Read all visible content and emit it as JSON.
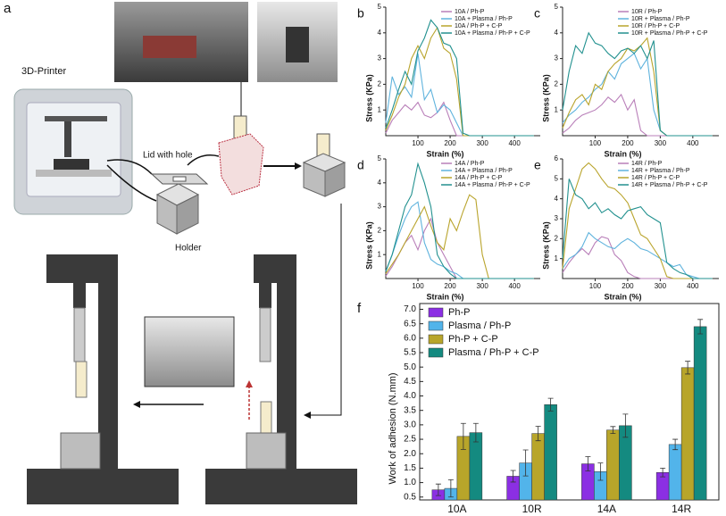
{
  "panel_a": {
    "panel_label": "a",
    "printer": "3D-Printer",
    "lid": "Lid with hole",
    "holder": "Holder"
  },
  "chart_data": [
    {
      "type": "line",
      "panel_label": "b",
      "xlabel": "Strain (%)",
      "ylabel": "Stress (KPa)",
      "x": [
        0,
        20,
        40,
        60,
        80,
        100,
        120,
        140,
        160,
        180,
        200,
        220,
        240,
        260,
        280,
        300,
        320,
        340,
        360,
        380,
        400,
        420,
        440,
        460
      ],
      "xlim": [
        0,
        480
      ],
      "ylim": [
        0,
        5
      ],
      "xticks": [
        100,
        200,
        300,
        400
      ],
      "yticks": [
        1,
        2,
        3,
        4,
        5
      ],
      "series": [
        {
          "name": "10A / Ph-P",
          "color": "#b97fb9",
          "values": [
            0.1,
            0.6,
            0.9,
            1.2,
            1.0,
            1.3,
            0.8,
            0.7,
            0.9,
            1.3,
            0.6,
            0,
            0,
            0,
            0,
            0,
            0,
            0,
            0,
            0,
            0,
            0,
            0,
            0
          ]
        },
        {
          "name": "10A + Plasma / Ph-P",
          "color": "#5fb3dd",
          "values": [
            0.5,
            2.3,
            1.6,
            1.9,
            1.5,
            3.2,
            1.4,
            1.8,
            0.9,
            1.2,
            1.0,
            0.5,
            0,
            0,
            0,
            0,
            0,
            0,
            0,
            0,
            0,
            0,
            0,
            0
          ]
        },
        {
          "name": "10A / Ph-P + C-P",
          "color": "#b9a42c",
          "values": [
            0.2,
            0.8,
            1.5,
            2.0,
            3.0,
            3.5,
            3.0,
            3.8,
            4.2,
            3.4,
            3.2,
            2.2,
            0,
            0,
            0,
            0,
            0,
            0,
            0,
            0,
            0,
            0,
            0,
            0
          ]
        },
        {
          "name": "10A + Plasma / Ph-P + C-P",
          "color": "#22918f",
          "values": [
            0.3,
            1.0,
            1.8,
            2.5,
            2.0,
            3.3,
            3.8,
            4.5,
            4.2,
            3.6,
            3.5,
            3.0,
            0.1,
            0,
            0,
            0,
            0,
            0,
            0,
            0,
            0,
            0,
            0,
            0
          ]
        }
      ]
    },
    {
      "type": "line",
      "panel_label": "c",
      "xlabel": "Strain (%)",
      "ylabel": "Stress (KPa)",
      "x": [
        0,
        20,
        40,
        60,
        80,
        100,
        120,
        140,
        160,
        180,
        200,
        220,
        240,
        260,
        280,
        300,
        320,
        340,
        360,
        380,
        400,
        420,
        440,
        460
      ],
      "xlim": [
        0,
        480
      ],
      "ylim": [
        0,
        5
      ],
      "xticks": [
        100,
        200,
        300,
        400
      ],
      "yticks": [
        1,
        2,
        3,
        4,
        5
      ],
      "series": [
        {
          "name": "10R / Ph-P",
          "color": "#b97fb9",
          "values": [
            0.1,
            0.3,
            0.6,
            0.8,
            0.9,
            1.0,
            1.2,
            1.5,
            1.3,
            1.6,
            1.0,
            1.4,
            0.2,
            0,
            0,
            0,
            0,
            0,
            0,
            0,
            0,
            0,
            0,
            0
          ]
        },
        {
          "name": "10R + Plasma / Ph-P",
          "color": "#5fb3dd",
          "values": [
            0.5,
            0.8,
            1.0,
            1.3,
            1.5,
            1.8,
            2.0,
            2.5,
            2.2,
            2.8,
            3.0,
            3.2,
            2.6,
            3.0,
            1.0,
            0.2,
            0,
            0,
            0,
            0,
            0,
            0,
            0,
            0
          ]
        },
        {
          "name": "10R / Ph-P + C-P",
          "color": "#b9a42c",
          "values": [
            0.3,
            0.9,
            1.4,
            1.6,
            1.2,
            2.0,
            1.8,
            2.5,
            2.8,
            3.0,
            3.4,
            3.3,
            3.5,
            3.8,
            2.5,
            0.2,
            0,
            0,
            0,
            0,
            0,
            0,
            0,
            0
          ]
        },
        {
          "name": "10R + Plasma / Ph-P + C-P",
          "color": "#22918f",
          "values": [
            1.0,
            2.5,
            3.5,
            3.2,
            4.0,
            3.6,
            3.5,
            3.2,
            3.0,
            3.3,
            3.4,
            3.2,
            3.5,
            3.0,
            3.7,
            0.2,
            0,
            0,
            0,
            0,
            0,
            0,
            0,
            0
          ]
        }
      ]
    },
    {
      "type": "line",
      "panel_label": "d",
      "xlabel": "Strain (%)",
      "ylabel": "Stress (KPa)",
      "x": [
        0,
        20,
        40,
        60,
        80,
        100,
        120,
        140,
        160,
        180,
        200,
        220,
        240,
        260,
        280,
        300,
        320,
        340,
        360,
        380,
        400,
        420,
        440,
        460
      ],
      "xlim": [
        0,
        480
      ],
      "ylim": [
        0,
        5
      ],
      "xticks": [
        100,
        200,
        300,
        400
      ],
      "yticks": [
        1,
        2,
        3,
        4,
        5
      ],
      "series": [
        {
          "name": "14A / Ph-P",
          "color": "#b97fb9",
          "values": [
            0.1,
            0.5,
            1.0,
            1.5,
            1.8,
            1.2,
            2.0,
            2.5,
            1.5,
            1.0,
            0.5,
            0,
            0,
            0,
            0,
            0,
            0,
            0,
            0,
            0,
            0,
            0,
            0,
            0
          ]
        },
        {
          "name": "14A + Plasma / Ph-P",
          "color": "#5fb3dd",
          "values": [
            0.3,
            1.0,
            1.8,
            2.5,
            3.0,
            3.2,
            1.5,
            0.8,
            0.6,
            0.5,
            0.3,
            0.2,
            0,
            0,
            0,
            0,
            0,
            0,
            0,
            0,
            0,
            0,
            0,
            0
          ]
        },
        {
          "name": "14A / Ph-P + C-P",
          "color": "#b9a42c",
          "values": [
            0.2,
            0.6,
            1.0,
            1.5,
            2.0,
            2.5,
            3.0,
            2.2,
            1.5,
            1.2,
            2.5,
            2.0,
            2.8,
            3.5,
            3.3,
            1.0,
            0,
            0,
            0,
            0,
            0,
            0,
            0,
            0
          ]
        },
        {
          "name": "14A + Plasma / Ph-P + C-P",
          "color": "#22918f",
          "values": [
            0.3,
            1.0,
            2.0,
            3.0,
            3.5,
            4.8,
            4.0,
            3.0,
            1.0,
            0.5,
            0.2,
            0,
            0,
            0,
            0,
            0,
            0,
            0,
            0,
            0,
            0,
            0,
            0,
            0
          ]
        }
      ]
    },
    {
      "type": "line",
      "panel_label": "e",
      "xlabel": "Strain (%)",
      "ylabel": "Stress (KPa)",
      "x": [
        0,
        20,
        40,
        60,
        80,
        100,
        120,
        140,
        160,
        180,
        200,
        220,
        240,
        260,
        280,
        300,
        320,
        340,
        360,
        380,
        400,
        420,
        440,
        460
      ],
      "xlim": [
        0,
        480
      ],
      "ylim": [
        0,
        6
      ],
      "xticks": [
        100,
        200,
        300,
        400
      ],
      "yticks": [
        1,
        2,
        3,
        4,
        5,
        6
      ],
      "series": [
        {
          "name": "14R / Ph-P",
          "color": "#b97fb9",
          "values": [
            0.3,
            0.8,
            1.2,
            1.5,
            1.2,
            1.8,
            2.1,
            2.0,
            1.2,
            0.9,
            0.3,
            0.1,
            0,
            0,
            0,
            0,
            0,
            0,
            0,
            0,
            0,
            0,
            0,
            0
          ]
        },
        {
          "name": "14R + Plasma / Ph-P",
          "color": "#5fb3dd",
          "values": [
            0.5,
            1.0,
            1.2,
            1.6,
            2.3,
            2.0,
            1.8,
            1.6,
            1.5,
            1.8,
            2.0,
            1.8,
            1.5,
            1.4,
            1.2,
            1.0,
            0.8,
            0.6,
            0.7,
            0.2,
            0.1,
            0,
            0,
            0
          ]
        },
        {
          "name": "14R / Ph-P + C-P",
          "color": "#b9a42c",
          "values": [
            0.5,
            3.5,
            4.5,
            5.5,
            5.8,
            5.5,
            5.0,
            4.6,
            4.5,
            4.2,
            3.8,
            3.0,
            2.2,
            2.0,
            1.5,
            1.0,
            0.1,
            0,
            0,
            0,
            0,
            0,
            0,
            0
          ]
        },
        {
          "name": "14R + Plasma / Ph-P + C-P",
          "color": "#22918f",
          "values": [
            1.0,
            5.0,
            4.2,
            4.0,
            3.5,
            3.8,
            3.3,
            3.5,
            3.2,
            3.0,
            3.4,
            3.5,
            3.6,
            3.2,
            3.0,
            2.8,
            0.8,
            0.5,
            0.3,
            0.2,
            0,
            0,
            0,
            0
          ]
        }
      ]
    },
    {
      "type": "bar",
      "panel_label": "f",
      "ylabel": "Work of adhesion (N.mm)",
      "legend": "upper left",
      "categories": [
        "10A",
        "10R",
        "14A",
        "14R"
      ],
      "ylim": [
        0.4,
        7.2
      ],
      "yticks": [
        0.5,
        {
          "value": 1,
          "label": "1.0"
        },
        1.5,
        {
          "value": 2,
          "label": "2.0"
        },
        2.5,
        {
          "value": 3,
          "label": "3.0"
        },
        3.5,
        {
          "value": 4,
          "label": "4.0"
        },
        4.5,
        {
          "value": 5,
          "label": "5.0"
        },
        5.5,
        {
          "value": 6,
          "label": "6.0"
        },
        6.5,
        {
          "value": 7,
          "label": "7.0"
        }
      ],
      "series": [
        {
          "name": "Ph-P",
          "color": "#8b2fe3",
          "values": [
            0.75,
            1.22,
            1.65,
            1.35
          ],
          "errors": [
            0.2,
            0.2,
            0.25,
            0.15
          ]
        },
        {
          "name": "Plasma / Ph-P",
          "color": "#52b4ea",
          "values": [
            0.8,
            1.68,
            1.38,
            2.32
          ],
          "errors": [
            0.3,
            0.45,
            0.3,
            0.18
          ]
        },
        {
          "name": "Ph-P + C-P",
          "color": "#b8a52a",
          "values": [
            2.6,
            2.7,
            2.82,
            4.98
          ],
          "errors": [
            0.45,
            0.25,
            0.12,
            0.22
          ]
        },
        {
          "name": "Plasma / Ph-P + C-P",
          "color": "#148a80",
          "values": [
            2.73,
            3.7,
            2.97,
            6.4
          ],
          "errors": [
            0.32,
            0.22,
            0.4,
            0.25
          ]
        }
      ]
    }
  ]
}
